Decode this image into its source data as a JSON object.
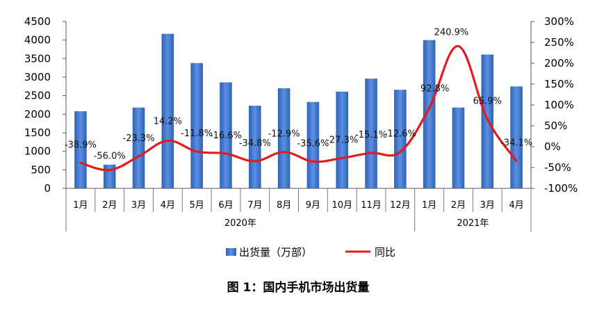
{
  "chart_data": {
    "type": "bar+line",
    "title": "",
    "categories": [
      "1月",
      "2月",
      "3月",
      "4月",
      "5月",
      "6月",
      "7月",
      "8月",
      "9月",
      "10月",
      "11月",
      "12月",
      "1月",
      "2月",
      "3月",
      "4月"
    ],
    "groups": [
      {
        "label": "2020年",
        "count": 12
      },
      {
        "label": "2021年",
        "count": 4
      }
    ],
    "series": [
      {
        "name": "出货量（万部）",
        "type": "bar",
        "axis": "left",
        "color": "#4472C4",
        "values": [
          2080,
          640,
          2180,
          4170,
          3380,
          2860,
          2230,
          2700,
          2330,
          2610,
          2960,
          2660,
          4000,
          2180,
          3610,
          2750
        ]
      },
      {
        "name": "同比",
        "type": "line",
        "axis": "right",
        "color": "#E41A1C",
        "values": [
          -38.9,
          -56.0,
          -23.3,
          14.2,
          -11.8,
          -16.6,
          -34.8,
          -12.9,
          -35.6,
          -27.3,
          -15.1,
          -12.6,
          92.8,
          240.9,
          65.9,
          -34.1
        ],
        "labels": [
          "-38.9%",
          "-56.0%",
          "-23.3%",
          "14.2%",
          "-11.8%",
          "-16.6%",
          "-34.8%",
          "-12.9%",
          "-35.6%",
          "-27.3%",
          "-15.1%",
          "-12.6%",
          "92.8%",
          "240.9%",
          "65.9%",
          "-34.1%"
        ]
      }
    ],
    "y_left": {
      "min": 0,
      "max": 4500,
      "ticks": [
        "0",
        "500",
        "1000",
        "1500",
        "2000",
        "2500",
        "3000",
        "3500",
        "4000",
        "4500"
      ]
    },
    "y_right": {
      "min": -100,
      "max": 300,
      "ticks": [
        "-100%",
        "-50%",
        "0%",
        "50%",
        "100%",
        "150%",
        "200%",
        "250%",
        "300%"
      ]
    },
    "grid": false,
    "legend": "bottom-center"
  },
  "caption": "图 1：国内手机市场出货量"
}
